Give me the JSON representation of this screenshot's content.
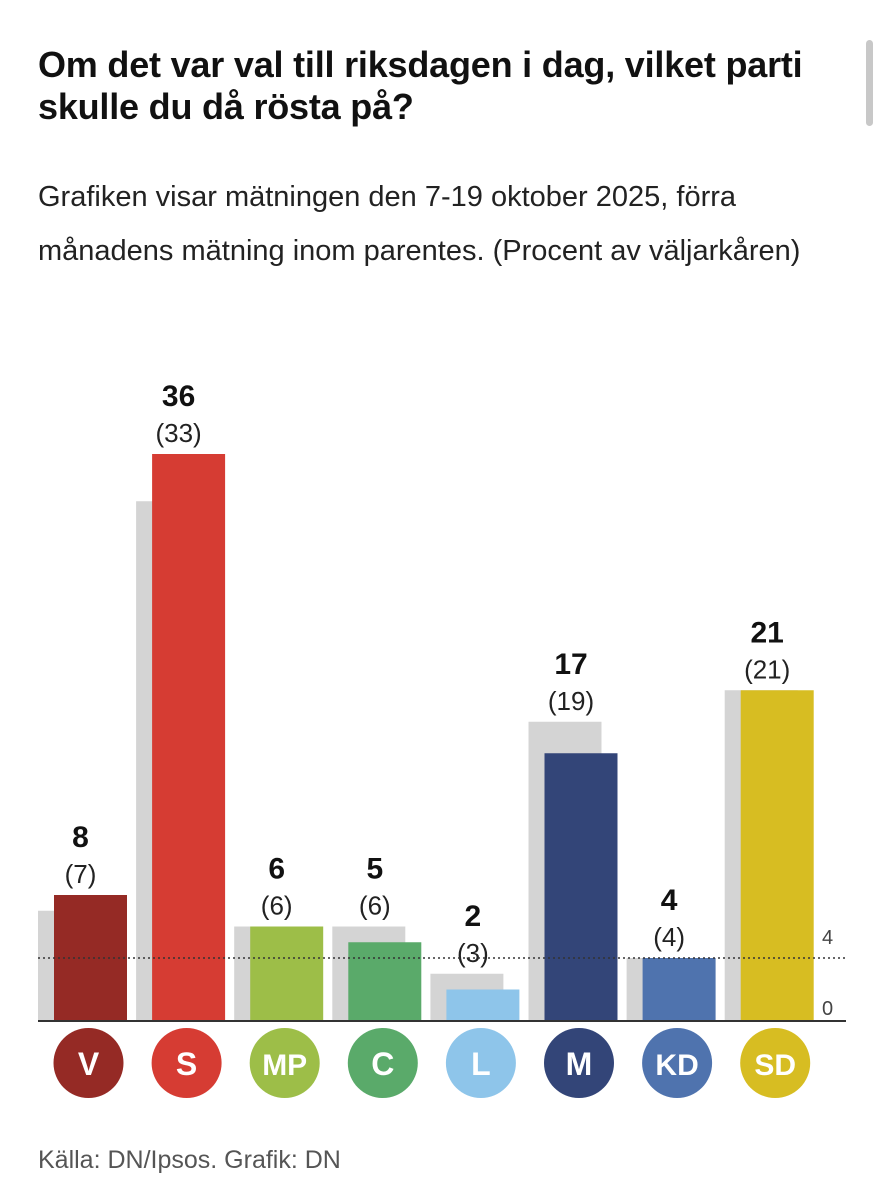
{
  "title": "Om det var val till riksdagen i dag, vilket parti skulle du då rösta på?",
  "subtitle": "Grafiken visar mätningen den 7-19 oktober 2025, förra månadens mätning inom parentes. (Procent av väljarkåren)",
  "source": "Källa: DN/Ipsos. Grafik: DN",
  "chart_data": {
    "type": "bar",
    "categories": [
      "V",
      "S",
      "MP",
      "C",
      "L",
      "M",
      "KD",
      "SD"
    ],
    "series": [
      {
        "name": "Oktober 2025",
        "values": [
          8,
          36,
          6,
          5,
          2,
          17,
          4,
          21
        ]
      },
      {
        "name": "Förra månaden",
        "values": [
          7,
          33,
          6,
          6,
          3,
          19,
          4,
          21
        ]
      }
    ],
    "current_labels": [
      "8",
      "36",
      "6",
      "5",
      "2",
      "17",
      "4",
      "21"
    ],
    "previous_labels": [
      "(7)",
      "(33)",
      "(6)",
      "(6)",
      "(3)",
      "(19)",
      "(4)",
      "(21)"
    ],
    "ylim": [
      0,
      36
    ],
    "reference_line": {
      "value": 4,
      "label": "4"
    },
    "zero_label": "0",
    "colors": {
      "V": "#952a25",
      "S": "#d63c33",
      "MP": "#9dbe48",
      "C": "#5aaa6a",
      "L": "#8ec5ea",
      "M": "#334578",
      "KD": "#4f73ae",
      "SD": "#d7bd22",
      "previous": "#d4d4d4"
    }
  }
}
